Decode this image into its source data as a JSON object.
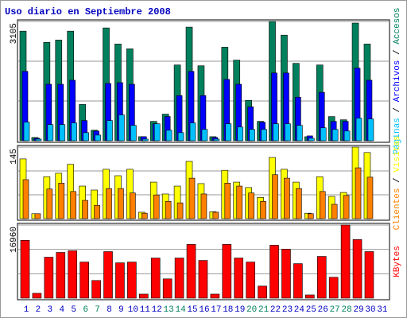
{
  "title": "Uso diario en Septiembre 2008",
  "legend_separator": "/",
  "chart_data": [
    {
      "type": "bar",
      "ylim": [
        0,
        3105
      ],
      "yticks": [
        3105
      ],
      "series": [
        {
          "name": "Accesos",
          "color": "#00805c",
          "values": [
            2853,
            84,
            2560,
            2622,
            2853,
            944,
            273,
            2937,
            2518,
            2392,
            105,
            504,
            692,
            1972,
            2958,
            1951,
            105,
            2434,
            2098,
            1049,
            504,
            3105,
            2749,
            2014,
            105,
            1972,
            629,
            545,
            3063,
            2518,
            null
          ]
        },
        {
          "name": "Archivos",
          "color": "#0000ff",
          "values": [
            1806,
            63,
            1470,
            1470,
            1575,
            525,
            252,
            1491,
            1512,
            1470,
            105,
            441,
            630,
            1176,
            1806,
            1176,
            84,
            1596,
            1470,
            882,
            483,
            1764,
            1764,
            1134,
            126,
            1260,
            504,
            504,
            1890,
            1575,
            null
          ]
        },
        {
          "name": "Páginas",
          "color": "#00c0ff",
          "values": [
            483,
            42,
            420,
            420,
            462,
            210,
            147,
            525,
            672,
            399,
            42,
            441,
            273,
            210,
            462,
            294,
            42,
            441,
            357,
            294,
            294,
            441,
            441,
            399,
            63,
            336,
            294,
            252,
            588,
            567,
            null
          ]
        }
      ]
    },
    {
      "type": "bar",
      "ylim": [
        0,
        145
      ],
      "yticks": [
        145
      ],
      "series": [
        {
          "name": "Visitas",
          "color": "#ffff00",
          "values": [
            121,
            10,
            85,
            92,
            110,
            66,
            58,
            100,
            87,
            100,
            13,
            74,
            50,
            66,
            116,
            71,
            14,
            98,
            74,
            63,
            43,
            124,
            100,
            74,
            11,
            85,
            45,
            53,
            145,
            134,
            null
          ]
        },
        {
          "name": "Clientes",
          "color": "#ff8000",
          "values": [
            79,
            10,
            60,
            72,
            55,
            37,
            27,
            61,
            61,
            52,
            11,
            48,
            35,
            32,
            82,
            50,
            13,
            72,
            66,
            52,
            35,
            89,
            82,
            61,
            10,
            55,
            29,
            47,
            103,
            84,
            null
          ]
        }
      ]
    },
    {
      "type": "bar",
      "ylim": [
        0,
        16960
      ],
      "yticks": [
        16960
      ],
      "categories": [
        "1",
        "2",
        "3",
        "4",
        "5",
        "6",
        "7",
        "8",
        "9",
        "10",
        "11",
        "12",
        "13",
        "14",
        "15",
        "16",
        "17",
        "18",
        "19",
        "20",
        "21",
        "22",
        "23",
        "24",
        "25",
        "26",
        "27",
        "28",
        "29",
        "30",
        "31"
      ],
      "category_colors": [
        "#0000c0",
        "#0000c0",
        "#0000c0",
        "#0000c0",
        "#0000c0",
        "#00805c",
        "#00805c",
        "#0000c0",
        "#0000c0",
        "#0000c0",
        "#0000c0",
        "#0000c0",
        "#00805c",
        "#00805c",
        "#0000c0",
        "#0000c0",
        "#0000c0",
        "#0000c0",
        "#0000c0",
        "#00805c",
        "#00805c",
        "#0000c0",
        "#0000c0",
        "#0000c0",
        "#0000c0",
        "#0000c0",
        "#00805c",
        "#00805c",
        "#0000c0",
        "#0000c0",
        "#0000c0"
      ],
      "series": [
        {
          "name": "KBytes",
          "color": "#ff0000",
          "values": [
            13400,
            1116,
            9490,
            10600,
            10980,
            8370,
            4090,
            10790,
            8190,
            8370,
            930,
            9300,
            4460,
            9300,
            12460,
            8740,
            930,
            12460,
            9300,
            8370,
            2790,
            12280,
            11350,
            8000,
            744,
            9670,
            4840,
            16960,
            13580,
            10790,
            null
          ]
        }
      ]
    }
  ]
}
